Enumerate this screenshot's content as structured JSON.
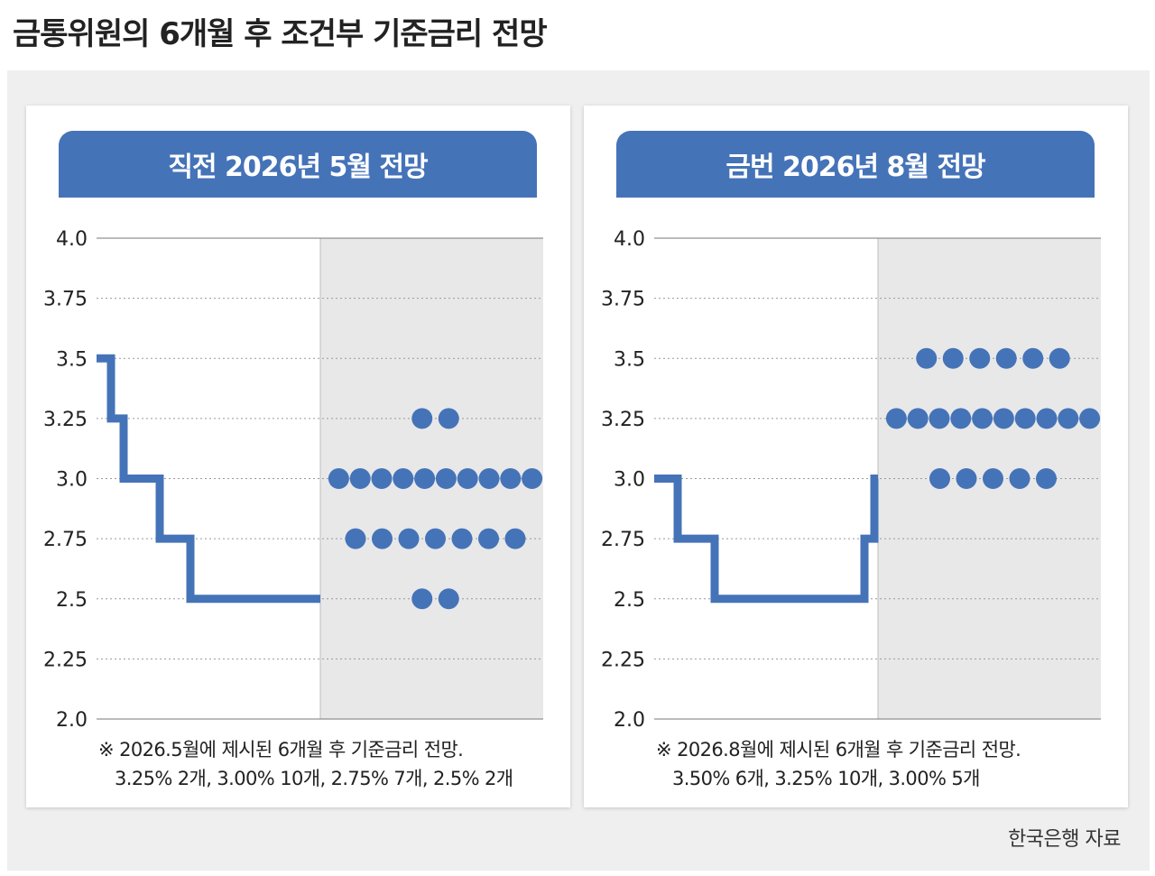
{
  "title": "금통위원의 6개월 후 조건부 기준금리 전망",
  "source": "한국은행 자료",
  "colors": {
    "accent": "#4573b8",
    "shade": "#e8e8e8",
    "grid": "#999999"
  },
  "panels": [
    {
      "header": "직전 2026년 5월 전망",
      "note_line1": "※ 2026.5월에 제시된 6개월 후 기준금리 전망.",
      "note_line2": "3.25% 2개, 3.00% 10개, 2.75% 7개, 2.5% 2개"
    },
    {
      "header": "금번 2026년 8월 전망",
      "note_line1": "※ 2026.8월에 제시된 6개월 후 기준금리 전망.",
      "note_line2": "3.50% 6개, 3.25% 10개, 3.00% 5개"
    }
  ],
  "chart_data": [
    {
      "type": "scatter",
      "title": "직전 2026년 5월 전망",
      "ylim": [
        2.0,
        4.0
      ],
      "yticks": [
        "4.0",
        "3.75",
        "3.5",
        "3.25",
        "3.0",
        "2.75",
        "2.5",
        "2.25",
        "2.0"
      ],
      "grid": true,
      "history_rate_path": [
        3.5,
        3.25,
        3.0,
        2.75,
        2.5
      ],
      "projection_dots": [
        {
          "rate": 3.25,
          "count": 2
        },
        {
          "rate": 3.0,
          "count": 10
        },
        {
          "rate": 2.75,
          "count": 7
        },
        {
          "rate": 2.5,
          "count": 2
        }
      ]
    },
    {
      "type": "scatter",
      "title": "금번 2026년 8월 전망",
      "ylim": [
        2.0,
        4.0
      ],
      "yticks": [
        "4.0",
        "3.75",
        "3.5",
        "3.25",
        "3.0",
        "2.75",
        "2.5",
        "2.25",
        "2.0"
      ],
      "grid": true,
      "history_rate_path": [
        3.0,
        2.75,
        2.5,
        2.75,
        3.0
      ],
      "projection_dots": [
        {
          "rate": 3.5,
          "count": 6
        },
        {
          "rate": 3.25,
          "count": 10
        },
        {
          "rate": 3.0,
          "count": 5
        }
      ]
    }
  ]
}
